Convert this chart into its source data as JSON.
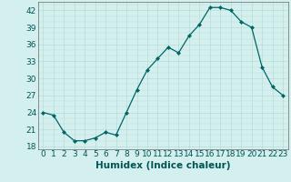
{
  "x": [
    0,
    1,
    2,
    3,
    4,
    5,
    6,
    7,
    8,
    9,
    10,
    11,
    12,
    13,
    14,
    15,
    16,
    17,
    18,
    19,
    20,
    21,
    22,
    23
  ],
  "y": [
    24,
    23.5,
    20.5,
    19,
    19,
    19.5,
    20.5,
    20,
    24,
    28,
    31.5,
    33.5,
    35.5,
    34.5,
    37.5,
    39.5,
    42.5,
    42.5,
    42,
    40,
    39,
    32,
    28.5,
    27
  ],
  "xlabel": "Humidex (Indice chaleur)",
  "ylim": [
    17.5,
    43.5
  ],
  "xlim": [
    -0.5,
    23.5
  ],
  "yticks": [
    18,
    21,
    24,
    27,
    30,
    33,
    36,
    39,
    42
  ],
  "xticks": [
    0,
    1,
    2,
    3,
    4,
    5,
    6,
    7,
    8,
    9,
    10,
    11,
    12,
    13,
    14,
    15,
    16,
    17,
    18,
    19,
    20,
    21,
    22,
    23
  ],
  "line_color": "#006666",
  "marker_color": "#006666",
  "bg_color": "#d4f0ee",
  "grid_color": "#b8dbd8",
  "xlabel_fontsize": 7.5,
  "tick_fontsize": 6.5,
  "xlabel_color": "#005555",
  "spine_color": "#666666"
}
